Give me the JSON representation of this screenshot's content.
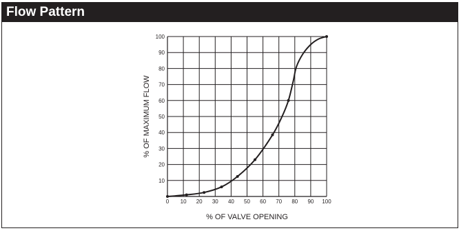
{
  "header": {
    "title": "Flow Pattern"
  },
  "colors": {
    "header_bg": "#231f20",
    "header_text": "#ffffff",
    "ink": "#231f20"
  },
  "chart_data": {
    "type": "line",
    "title": "",
    "xlabel": "% OF VALVE OPENING",
    "ylabel": "% OF MAXIMUM FLOW",
    "xlim": [
      0,
      100
    ],
    "ylim": [
      0,
      100
    ],
    "x_ticks": [
      "0",
      "10",
      "20",
      "30",
      "40",
      "50",
      "60",
      "70",
      "80",
      "90",
      "100"
    ],
    "y_ticks": [
      "10",
      "20",
      "30",
      "40",
      "50",
      "60",
      "70",
      "80",
      "90",
      "100"
    ],
    "grid": true,
    "series": [
      {
        "markers": [
          {
            "x": 0,
            "y": 0
          },
          {
            "x": 12,
            "y": 1
          },
          {
            "x": 23,
            "y": 2.5
          },
          {
            "x": 34,
            "y": 6
          },
          {
            "x": 44,
            "y": 12.5
          },
          {
            "x": 55,
            "y": 23
          },
          {
            "x": 66,
            "y": 38.5
          },
          {
            "x": 76,
            "y": 60
          },
          {
            "x": 100,
            "y": 100
          }
        ],
        "curve": [
          {
            "x": 0,
            "y": 0
          },
          {
            "x": 12,
            "y": 1
          },
          {
            "x": 23,
            "y": 2.5
          },
          {
            "x": 34,
            "y": 6
          },
          {
            "x": 44,
            "y": 12.5
          },
          {
            "x": 55,
            "y": 23
          },
          {
            "x": 66,
            "y": 38.5
          },
          {
            "x": 72,
            "y": 50
          },
          {
            "x": 76,
            "y": 60
          },
          {
            "x": 79,
            "y": 72
          },
          {
            "x": 81,
            "y": 81
          },
          {
            "x": 85,
            "y": 89
          },
          {
            "x": 90,
            "y": 95
          },
          {
            "x": 95,
            "y": 98.5
          },
          {
            "x": 100,
            "y": 100
          }
        ]
      }
    ]
  }
}
